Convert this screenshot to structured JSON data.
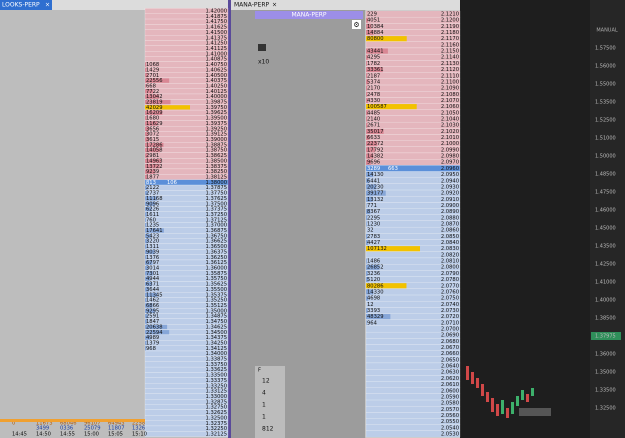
{
  "left": {
    "tab": "LOOKS-PERP",
    "current_price": "1.38000",
    "current_bid_ask": [
      813,
      106
    ],
    "prices": [
      "1.42000",
      "1.41875",
      "1.41750",
      "1.41625",
      "1.41500",
      "1.41375",
      "1.41250",
      "1.41125",
      "1.41000",
      "1.40875",
      "1.40750",
      "1.40625",
      "1.40500",
      "1.40375",
      "1.40250",
      "1.40125",
      "1.40000",
      "1.39875",
      "1.39750",
      "1.39625",
      "1.39500",
      "1.39375",
      "1.39250",
      "1.39125",
      "1.39000",
      "1.38875",
      "1.38750",
      "1.38625",
      "1.38500",
      "1.38375",
      "1.38250",
      "1.38125",
      "1.38000",
      "1.37875",
      "1.37750",
      "1.37625",
      "1.37500",
      "1.37375",
      "1.37250",
      "1.37125",
      "1.37000",
      "1.36875",
      "1.36750",
      "1.36625",
      "1.36500",
      "1.36375",
      "1.36250",
      "1.36125",
      "1.36000",
      "1.35875",
      "1.35750",
      "1.35625",
      "1.35500",
      "1.35375",
      "1.35250",
      "1.35125",
      "1.35000",
      "1.34875",
      "1.34750",
      "1.34625",
      "1.34500",
      "1.34375",
      "1.34250",
      "1.34125",
      "1.34000",
      "1.33875",
      "1.33750",
      "1.33625",
      "1.33500",
      "1.33375",
      "1.33250",
      "1.33125",
      "1.33000",
      "1.32875",
      "1.32750",
      "1.32625",
      "1.32500",
      "1.32375",
      "1.32250",
      "1.32125"
    ],
    "volumes": [
      null,
      null,
      null,
      null,
      null,
      null,
      null,
      null,
      null,
      null,
      1068,
      1429,
      2701,
      22556,
      668,
      7722,
      13042,
      23819,
      42029,
      16209,
      1680,
      11629,
      3656,
      3072,
      3615,
      17286,
      14058,
      2981,
      14963,
      13722,
      9239,
      1877,
      null,
      2122,
      2737,
      11168,
      9096,
      6226,
      1611,
      760,
      1235,
      17641,
      5423,
      3220,
      1311,
      9039,
      1376,
      6797,
      3014,
      7301,
      4944,
      6371,
      3644,
      11345,
      1462,
      6866,
      9295,
      2591,
      1847,
      20638,
      22594,
      4989,
      1379,
      968,
      null,
      null,
      null,
      null,
      null,
      null,
      null,
      null,
      null,
      null,
      null,
      null,
      null,
      null,
      null,
      null
    ],
    "footer_top": [
      "0",
      "11673",
      "68046",
      "96107",
      "64943",
      "2258"
    ],
    "footer_mid": [
      "3499",
      "0336",
      "25079",
      "11807",
      "1326"
    ],
    "times": [
      "14:45",
      "14:50",
      "14:55",
      "15:00",
      "15:05",
      "15:10"
    ]
  },
  "middle": {
    "tab": "MANA-PERP",
    "header": "MANA-PERP",
    "leverage": "x10",
    "current_price": "2.0960",
    "current_bid_ask": [
      3289,
      663
    ],
    "prices": [
      "2.1210",
      "2.1200",
      "2.1190",
      "2.1180",
      "2.1170",
      "2.1160",
      "2.1150",
      "2.1140",
      "2.1130",
      "2.1120",
      "2.1110",
      "2.1100",
      "2.1090",
      "2.1080",
      "2.1070",
      "2.1060",
      "2.1050",
      "2.1040",
      "2.1030",
      "2.1020",
      "2.1010",
      "2.1000",
      "2.0990",
      "2.0980",
      "2.0970",
      "2.0960",
      "2.0950",
      "2.0940",
      "2.0930",
      "2.0920",
      "2.0910",
      "2.0900",
      "2.0890",
      "2.0880",
      "2.0870",
      "2.0860",
      "2.0850",
      "2.0840",
      "2.0830",
      "2.0820",
      "2.0810",
      "2.0800",
      "2.0790",
      "2.0780",
      "2.0770",
      "2.0760",
      "2.0750",
      "2.0740",
      "2.0730",
      "2.0720",
      "2.0710",
      "2.0700",
      "2.0690",
      "2.0680",
      "2.0670",
      "2.0660",
      "2.0650",
      "2.0640",
      "2.0630",
      "2.0620",
      "2.0610",
      "2.0600",
      "2.0590",
      "2.0580",
      "2.0570",
      "2.0560",
      "2.0550",
      "2.0540",
      "2.0530"
    ],
    "volumes": [
      229,
      4051,
      10384,
      14884,
      80800,
      null,
      43441,
      4295,
      1782,
      33361,
      2187,
      5374,
      2170,
      2478,
      4330,
      100587,
      4485,
      2140,
      2671,
      35017,
      6633,
      22372,
      17792,
      14382,
      9696,
      null,
      14130,
      6441,
      20230,
      39177,
      13132,
      771,
      8367,
      2295,
      1230,
      32,
      2783,
      4427,
      107132,
      null,
      1486,
      26852,
      3236,
      5120,
      80286,
      14330,
      4698,
      12,
      3393,
      48329,
      964,
      null,
      null,
      null,
      null,
      null,
      null,
      null,
      null,
      null,
      null,
      null,
      null,
      null,
      null,
      null,
      null,
      null,
      null
    ],
    "side_label": "F",
    "side_values": [
      "12",
      "4",
      "1",
      "1",
      "812"
    ]
  },
  "right": {
    "mode": "MANUAL",
    "current_price": "1.37975",
    "axis_labels": [
      "1.57500",
      "1.56000",
      "1.55000",
      "1.53500",
      "1.52500",
      "1.51000",
      "1.50000",
      "1.48500",
      "1.47500",
      "1.46000",
      "1.45000",
      "1.43500",
      "1.42500",
      "1.41000",
      "1.40000",
      "1.38500",
      "1.37975",
      "1.36000",
      "1.35000",
      "1.33500",
      "1.32500"
    ]
  }
}
